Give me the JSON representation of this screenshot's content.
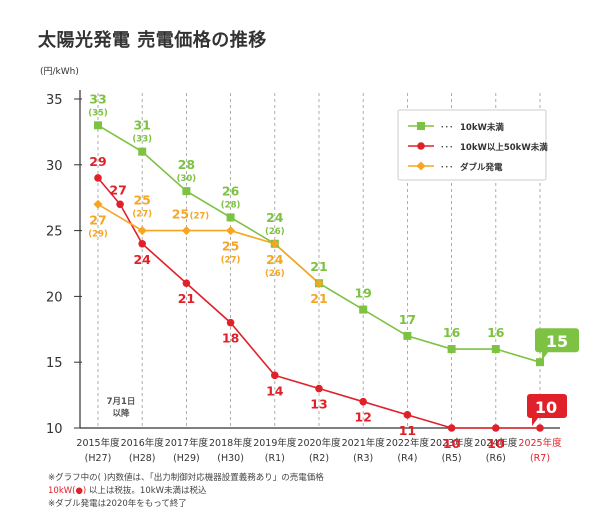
{
  "page_title": "太陽光発電 売電価格の推移",
  "footnotes": {
    "line1": "※グラフ中の( )内数値は、「出力制御対応機器設置義務あり」の売電価格",
    "line2_highlight": "10kW(●)",
    "line2_rest": " 以上は税抜。10kW未満は税込",
    "line3": "※ダブル発電は2020年をもって終了"
  },
  "chart_data": {
    "type": "line",
    "title": "太陽光発電 売電価格の推移",
    "ylabel": "(円/kWh)",
    "xlabel": "",
    "ylim": [
      10,
      35
    ],
    "yticks": [
      10,
      15,
      20,
      25,
      30,
      35
    ],
    "grid": true,
    "legend_position": "top-right",
    "categories": [
      "2015年度",
      "2016年度",
      "2017年度",
      "2018年度",
      "2019年度",
      "2020年度",
      "2021年度",
      "2022年度",
      "2023年度",
      "2024年度",
      "2025年度"
    ],
    "sub_categories": [
      "(H27)",
      "(H28)",
      "(H29)",
      "(H30)",
      "(R1)",
      "(R2)",
      "(R3)",
      "(R4)",
      "(R5)",
      "(R6)",
      "(R7)"
    ],
    "annotation": {
      "line1": "7月1日",
      "line2": "以降"
    },
    "colors": {
      "green": "#7dc242",
      "red": "#e0212a",
      "orange": "#f5a623",
      "axis": "#333333",
      "grid": "#999999"
    },
    "series": [
      {
        "name": "10kW未満",
        "marker": "square",
        "color": "#7dc242",
        "x": [
          0,
          1,
          2,
          3,
          4,
          5,
          6,
          7,
          8,
          9,
          10
        ],
        "values": [
          33,
          31,
          28,
          26,
          24,
          21,
          19,
          17,
          16,
          16,
          15
        ],
        "labels": [
          "33",
          "31",
          "28",
          "26",
          "24",
          "21",
          "19",
          "17",
          "16",
          "16",
          "15"
        ],
        "sub_labels": [
          "(35)",
          "(33)",
          "(30)",
          "(28)",
          "(26)",
          "",
          "",
          "",
          "",
          "",
          ""
        ]
      },
      {
        "name": "10kW以上50kW未満",
        "marker": "circle",
        "color": "#e0212a",
        "x": [
          0,
          0.5,
          1,
          2,
          3,
          4,
          5,
          6,
          7,
          8,
          9,
          10
        ],
        "values": [
          29,
          27,
          24,
          21,
          18,
          14,
          13,
          12,
          11,
          10,
          10,
          10
        ],
        "labels": [
          "29",
          "27",
          "24",
          "21",
          "18",
          "14",
          "13",
          "12",
          "11",
          "10",
          "10",
          "10"
        ]
      },
      {
        "name": "ダブル発電",
        "marker": "diamond",
        "color": "#f5a623",
        "x": [
          0,
          1,
          2,
          3,
          4,
          5
        ],
        "values": [
          27,
          25,
          25,
          25,
          24,
          21
        ],
        "labels": [
          "27",
          "25",
          "25",
          "25",
          "24",
          "21"
        ],
        "sub_labels": [
          "(29)",
          "(27)",
          "(27)",
          "(27)",
          "(26)",
          ""
        ]
      }
    ]
  }
}
